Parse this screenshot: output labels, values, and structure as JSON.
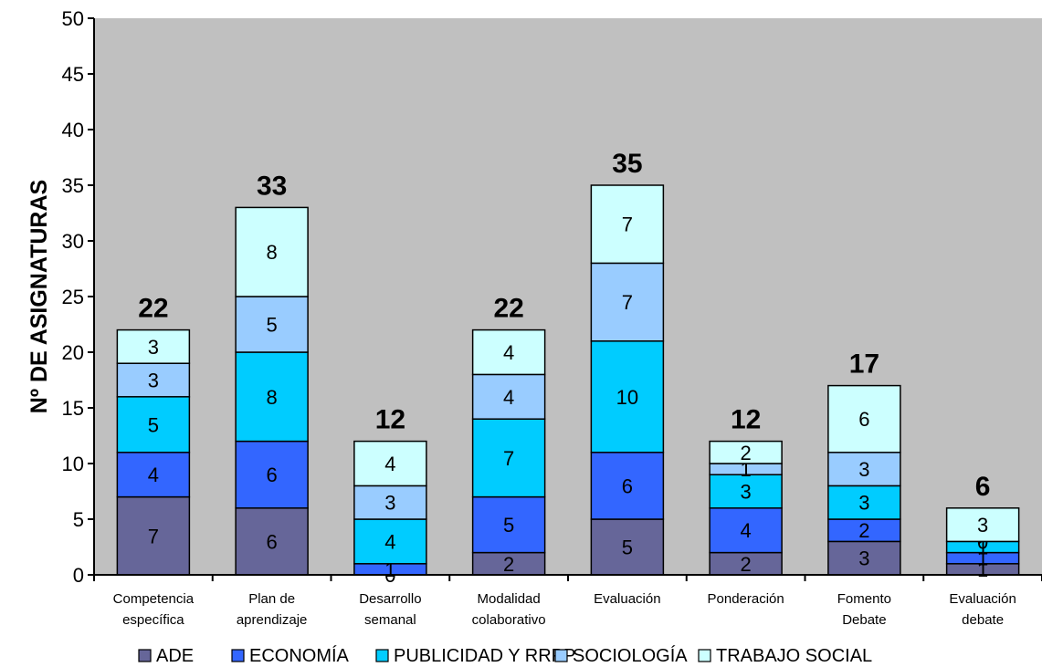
{
  "chart_data": {
    "type": "bar",
    "stacked": true,
    "ylabel": "Nº DE ASIGNATURAS",
    "ylim": [
      0,
      50
    ],
    "yticks": [
      0,
      5,
      10,
      15,
      20,
      25,
      30,
      35,
      40,
      45,
      50
    ],
    "grid": false,
    "legend": "bottom",
    "categories": [
      [
        "Competencia",
        "específica"
      ],
      [
        "Plan de",
        "aprendizaje"
      ],
      [
        "Desarrollo",
        "semanal"
      ],
      [
        "Modalidad",
        "colaborativo"
      ],
      [
        "Evaluación"
      ],
      [
        "Ponderación"
      ],
      [
        "Fomento",
        "Debate"
      ],
      [
        "Evaluación",
        "debate"
      ]
    ],
    "series": [
      {
        "name": "ADE",
        "color": "#666699",
        "values": [
          7,
          6,
          0,
          2,
          5,
          2,
          3,
          1
        ]
      },
      {
        "name": "ECONOMÍA",
        "color": "#3366ff",
        "values": [
          4,
          6,
          1,
          5,
          6,
          4,
          2,
          1
        ]
      },
      {
        "name": "PUBLICIDAD Y RRPP",
        "color": "#00ccff",
        "values": [
          5,
          8,
          4,
          7,
          10,
          3,
          3,
          1
        ]
      },
      {
        "name": "SOCIOLOGÍA",
        "color": "#99ccff",
        "values": [
          3,
          5,
          3,
          4,
          7,
          1,
          3,
          0
        ]
      },
      {
        "name": "TRABAJO SOCIAL",
        "color": "#ccffff",
        "values": [
          3,
          8,
          4,
          4,
          7,
          2,
          6,
          3
        ]
      }
    ],
    "totals": [
      22,
      33,
      12,
      22,
      35,
      12,
      17,
      6
    ],
    "plot_background": "#c0c0c0"
  }
}
